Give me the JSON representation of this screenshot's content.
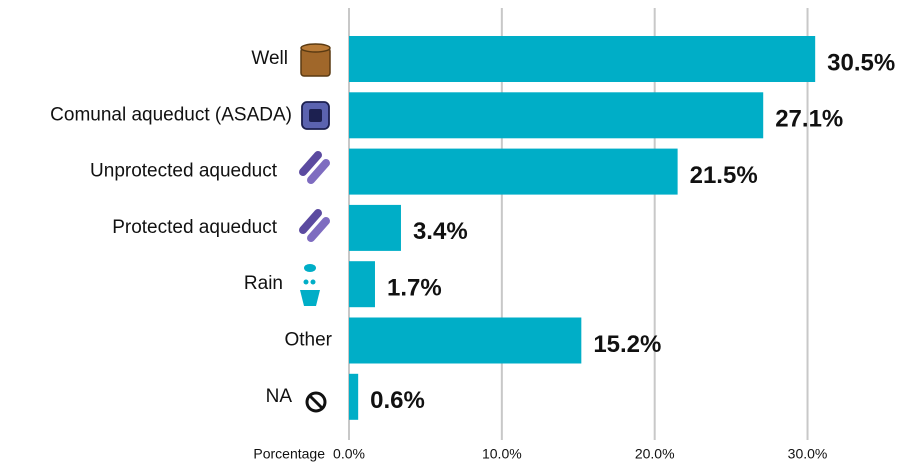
{
  "chart_data": {
    "type": "bar",
    "orientation": "horizontal",
    "categories": [
      "Well",
      "Comunal aqueduct (ASADA)",
      "Unprotected aqueduct",
      "Protected aqueduct",
      "Rain",
      "Other",
      "NA"
    ],
    "values": [
      30.5,
      27.1,
      21.5,
      3.4,
      1.7,
      15.2,
      0.6
    ],
    "value_labels": [
      "30.5%",
      "27.1%",
      "21.5%",
      "3.4%",
      "1.7%",
      "15.2%",
      "0.6%"
    ],
    "color": "#00aec7",
    "xlabel": "Porcentage",
    "xlim": [
      0,
      36.9
    ],
    "xticks": [
      {
        "value": 0,
        "label": "0.0%"
      },
      {
        "value": 10,
        "label": "10.0%"
      },
      {
        "value": 20,
        "label": "20.0%"
      },
      {
        "value": 30,
        "label": "30.0%"
      }
    ],
    "grid": true
  }
}
